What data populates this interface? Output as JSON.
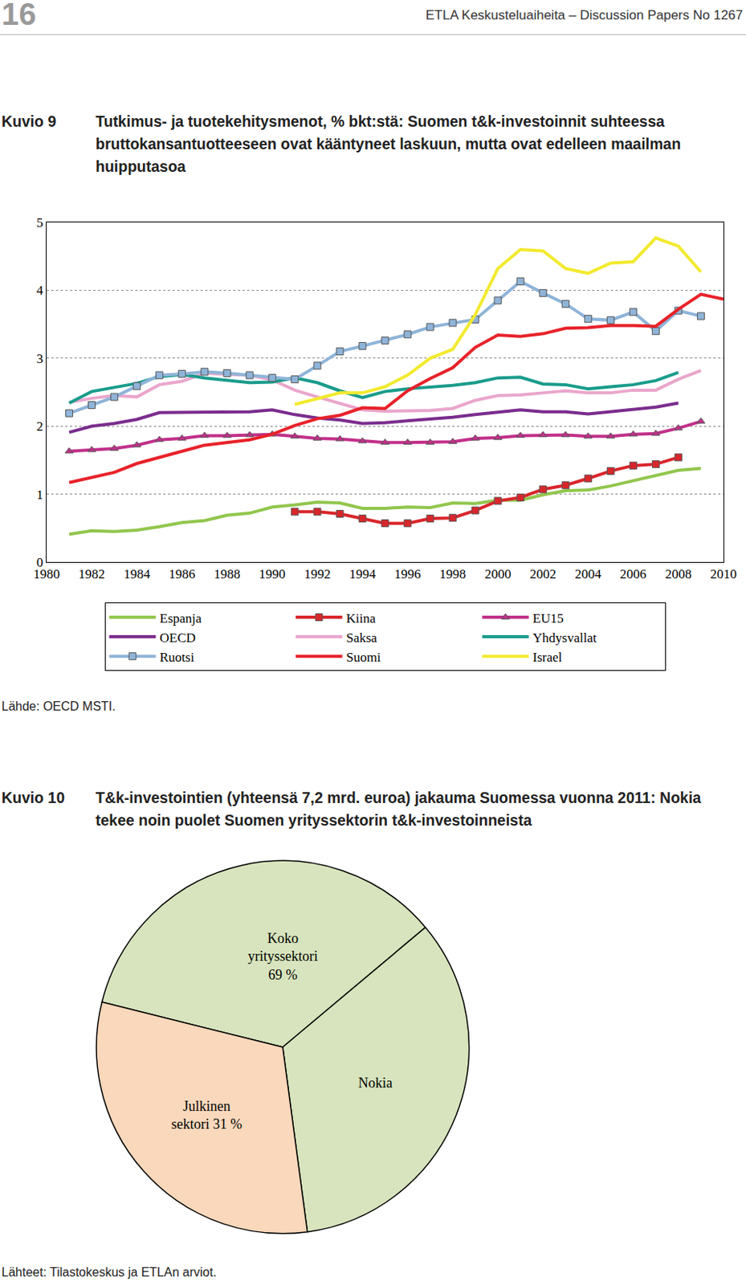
{
  "header": {
    "page_number": 16,
    "publication": "ETLA Keskusteluaiheita – Discussion Papers No 1267"
  },
  "chart_data": [
    {
      "label": "Kuvio 9",
      "type": "line",
      "title": "Tutkimus- ja tuotekehitysmenot, % bkt:stä: Suomen t&k-investoinnit suhteessa bruttokansantuotteeseen ovat kääntyneet laskuun, mutta ovat edelleen maailman huipputasoa",
      "source": "Lähde: OECD MSTI.",
      "x": [
        1981,
        1982,
        1983,
        1984,
        1985,
        1986,
        1987,
        1988,
        1989,
        1990,
        1991,
        1992,
        1993,
        1994,
        1995,
        1996,
        1997,
        1998,
        1999,
        2000,
        2001,
        2002,
        2003,
        2004,
        2005,
        2006,
        2007,
        2008,
        2009,
        2010
      ],
      "series": [
        {
          "name": "Espanja",
          "color": "#92c64e",
          "values": [
            0.41,
            0.46,
            0.45,
            0.47,
            0.52,
            0.58,
            0.61,
            0.69,
            0.72,
            0.81,
            0.84,
            0.88,
            0.87,
            0.79,
            0.79,
            0.81,
            0.8,
            0.87,
            0.86,
            0.91,
            0.91,
            0.99,
            1.05,
            1.06,
            1.12,
            1.2,
            1.27,
            1.35,
            1.38,
            null
          ]
        },
        {
          "name": "Kiina",
          "color": "#d9262b",
          "marker": "square",
          "values": [
            null,
            null,
            null,
            null,
            null,
            null,
            null,
            null,
            null,
            null,
            0.74,
            0.74,
            0.71,
            0.64,
            0.57,
            0.57,
            0.64,
            0.65,
            0.76,
            0.9,
            0.95,
            1.07,
            1.13,
            1.23,
            1.34,
            1.42,
            1.44,
            1.54,
            null,
            null
          ]
        },
        {
          "name": "EU15",
          "color": "#c2308a",
          "marker": "triangle",
          "values": [
            1.63,
            1.65,
            1.67,
            1.72,
            1.8,
            1.82,
            1.86,
            1.86,
            1.87,
            1.88,
            1.85,
            1.82,
            1.81,
            1.78,
            1.76,
            1.76,
            1.76,
            1.77,
            1.82,
            1.83,
            1.86,
            1.87,
            1.87,
            1.85,
            1.85,
            1.88,
            1.89,
            1.97,
            2.07,
            null
          ]
        },
        {
          "name": "OECD",
          "color": "#7b2d8e",
          "values": [
            1.91,
            2.0,
            2.04,
            2.1,
            2.2,
            2.2,
            2.21,
            2.2,
            2.21,
            2.24,
            2.17,
            2.12,
            2.09,
            2.04,
            2.05,
            2.08,
            2.1,
            2.13,
            2.17,
            2.21,
            2.24,
            2.21,
            2.21,
            2.18,
            2.21,
            2.24,
            2.28,
            2.34,
            null,
            null
          ]
        },
        {
          "name": "Saksa",
          "color": "#eaa6cc",
          "values": [
            2.35,
            2.41,
            2.45,
            2.43,
            2.61,
            2.66,
            2.78,
            2.76,
            2.75,
            2.68,
            2.53,
            2.43,
            2.33,
            2.24,
            2.22,
            2.22,
            2.23,
            2.26,
            2.38,
            2.45,
            2.46,
            2.49,
            2.52,
            2.49,
            2.49,
            2.53,
            2.53,
            2.69,
            2.82,
            null
          ]
        },
        {
          "name": "Yhdysvallat",
          "color": "#1a9c8c",
          "values": [
            2.34,
            2.51,
            2.57,
            2.63,
            2.73,
            2.76,
            2.71,
            2.67,
            2.64,
            2.65,
            2.71,
            2.64,
            2.52,
            2.42,
            2.51,
            2.55,
            2.57,
            2.6,
            2.64,
            2.71,
            2.72,
            2.62,
            2.61,
            2.55,
            2.58,
            2.61,
            2.67,
            2.79,
            null,
            null
          ]
        },
        {
          "name": "Ruotsi",
          "color": "#8fb4d9",
          "marker": "square",
          "values": [
            2.19,
            2.31,
            2.43,
            2.59,
            2.75,
            2.77,
            2.8,
            2.78,
            2.75,
            2.71,
            2.69,
            2.89,
            3.1,
            3.18,
            3.26,
            3.35,
            3.46,
            3.52,
            3.57,
            3.85,
            4.13,
            3.96,
            3.8,
            3.58,
            3.56,
            3.68,
            3.4,
            3.7,
            3.62,
            null
          ]
        },
        {
          "name": "Suomi",
          "color": "#e8222a",
          "values": [
            1.17,
            1.25,
            1.32,
            1.45,
            1.54,
            1.63,
            1.72,
            1.76,
            1.8,
            1.88,
            2.01,
            2.11,
            2.16,
            2.27,
            2.26,
            2.52,
            2.7,
            2.86,
            3.16,
            3.34,
            3.32,
            3.36,
            3.44,
            3.45,
            3.48,
            3.48,
            3.47,
            3.72,
            3.94,
            3.87
          ]
        },
        {
          "name": "Israel",
          "color": "#f2ea2e",
          "values": [
            null,
            null,
            null,
            null,
            null,
            null,
            null,
            null,
            null,
            null,
            2.32,
            2.4,
            2.49,
            2.49,
            2.58,
            2.75,
            3.0,
            3.13,
            3.64,
            4.32,
            4.6,
            4.58,
            4.32,
            4.25,
            4.4,
            4.42,
            4.77,
            4.65,
            4.27,
            null
          ]
        }
      ],
      "xlim": [
        1980,
        2010
      ],
      "xticks": [
        1980,
        1982,
        1984,
        1986,
        1988,
        1990,
        1992,
        1994,
        1996,
        1998,
        2000,
        2002,
        2004,
        2006,
        2008,
        2010
      ],
      "ylim": [
        0,
        5
      ],
      "yticks": [
        0,
        1,
        2,
        3,
        4,
        5
      ],
      "grid": true,
      "legend": "bottom"
    },
    {
      "label": "Kuvio 10",
      "type": "pie",
      "title": "T&k-investointien (yhteensä 7,2 mrd. euroa) jakauma Suomessa vuonna 2011: Nokia tekee noin puolet Suomen yrityssektorin t&k-investoinneista",
      "source": "Lähteet: Tilastokeskus ja ETLAn arviot.",
      "categories": [
        null,
        "Nokia",
        "Julkinen sektori"
      ],
      "values": [
        35,
        34,
        31
      ],
      "value_labels": [
        null,
        null,
        "31 %"
      ],
      "colors": [
        "#d7e4bd",
        "#d7e4bd",
        "#fad8bb"
      ],
      "data_labels": true,
      "annotations": [
        {
          "text": "Koko yrityssektori 69 %"
        }
      ]
    }
  ]
}
